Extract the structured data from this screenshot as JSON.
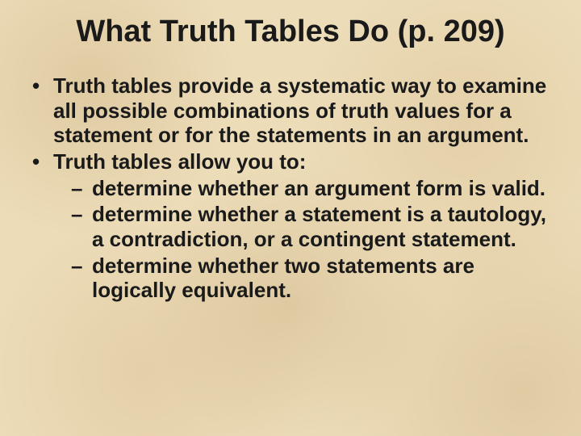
{
  "slide": {
    "title": "What Truth Tables Do (p. 209)",
    "bullets": [
      {
        "text": "Truth tables provide a systematic way to examine all possible combinations of truth values for a statement or for the statements in an argument."
      },
      {
        "text": "Truth tables allow you to:",
        "sub": [
          "determine whether an argument form is valid.",
          "determine whether a statement is a tautology, a contradiction, or a contingent statement.",
          "determine whether two statements are logically equivalent."
        ]
      }
    ]
  },
  "style": {
    "background_base": "#ecdcb8",
    "text_color": "#1a1a1a",
    "title_fontsize_pt": 29,
    "body_fontsize_pt": 20,
    "font_family": "Arial",
    "font_weight": "bold"
  }
}
